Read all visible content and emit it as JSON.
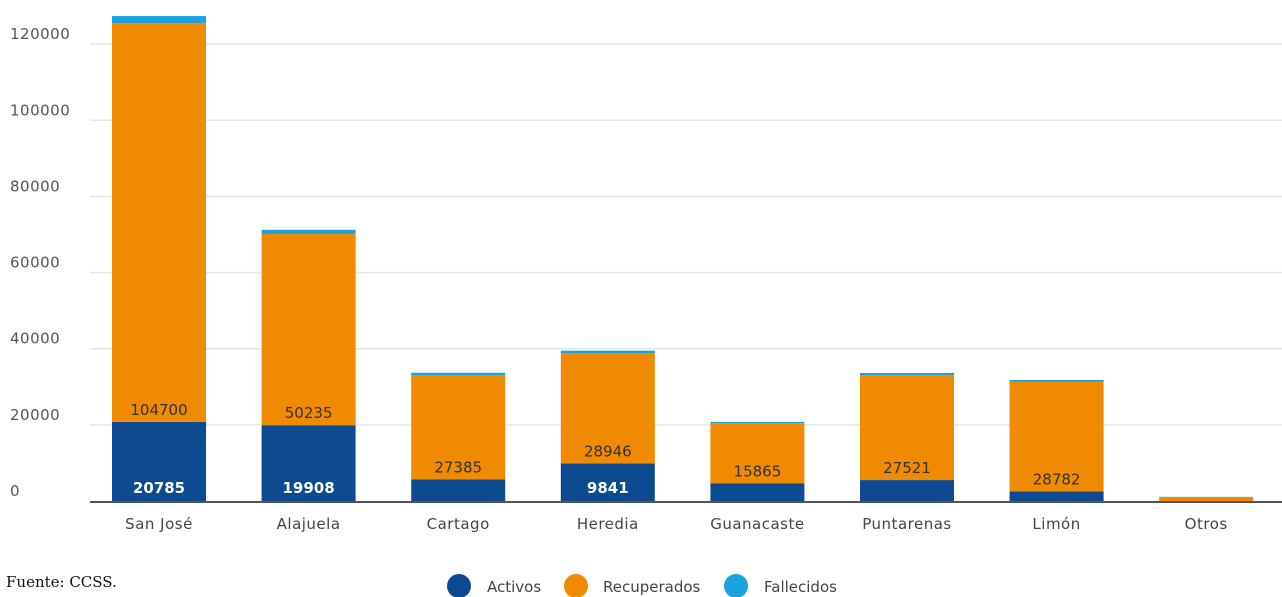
{
  "source": "Fuente: CCSS.",
  "colors": {
    "activos": "#0d4a8f",
    "recuperados": "#f08a00",
    "fallecidos": "#1ba3e0",
    "grid": "#e6e6e6",
    "baseline": "#555555"
  },
  "chart_data": {
    "type": "bar",
    "stacked": true,
    "categories": [
      "San José",
      "Alajuela",
      "Cartago",
      "Heredia",
      "Guanacaste",
      "Puntarenas",
      "Limón",
      "Otros"
    ],
    "series": [
      {
        "name": "Activos",
        "values": [
          20785,
          19908,
          5700,
          9841,
          4600,
          5500,
          2500,
          0
        ]
      },
      {
        "name": "Recuperados",
        "values": [
          104700,
          50235,
          27385,
          28946,
          15865,
          27521,
          28782,
          1000
        ]
      },
      {
        "name": "Fallecidos",
        "values": [
          1900,
          1100,
          600,
          700,
          300,
          600,
          500,
          100
        ]
      }
    ],
    "data_labels": {
      "Activos": [
        "20785",
        "19908",
        "",
        "9841",
        "",
        "",
        "",
        ""
      ],
      "Recuperados": [
        "104700",
        "50235",
        "27385",
        "28946",
        "15865",
        "27521",
        "28782",
        ""
      ]
    },
    "yticks": [
      0,
      20000,
      40000,
      60000,
      80000,
      100000,
      120000
    ],
    "ylim": [
      0,
      127400
    ],
    "grid": true,
    "legend": {
      "position": "bottom-center",
      "entries": [
        "Activos",
        "Recuperados",
        "Fallecidos"
      ]
    },
    "title": "",
    "xlabel": "",
    "ylabel": ""
  }
}
